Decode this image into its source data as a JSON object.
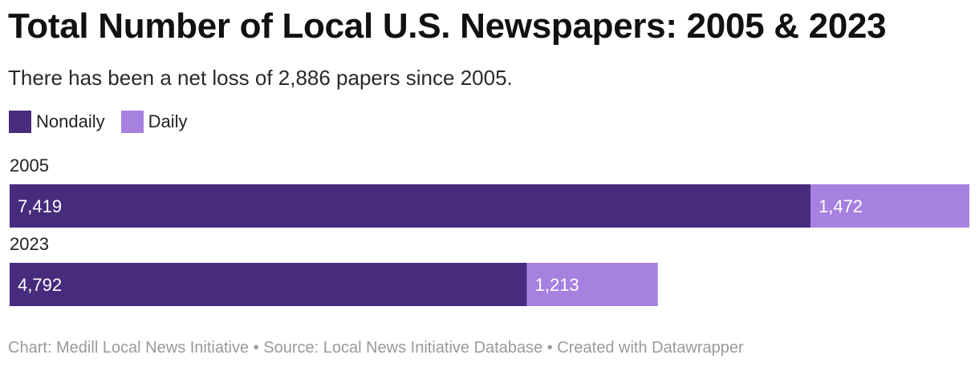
{
  "chart_data": {
    "type": "bar",
    "orientation": "horizontal",
    "stacked": true,
    "title": "Total Number of Local U.S. Newspapers: 2005 & 2023",
    "subtitle": "There has been a net loss of 2,886 papers since 2005.",
    "categories": [
      "2005",
      "2023"
    ],
    "series": [
      {
        "name": "Nondaily",
        "color": "#472c7d",
        "values": [
          7419,
          4792
        ],
        "labels": [
          "7,419",
          "4,792"
        ]
      },
      {
        "name": "Daily",
        "color": "#a681e0",
        "values": [
          1472,
          1213
        ],
        "labels": [
          "1,472",
          "1,213"
        ]
      }
    ],
    "xlim": [
      0,
      8891
    ],
    "grid": false,
    "legend": "top-left",
    "footer": "Chart: Medill Local News Initiative • Source: Local News Initiative Database • Created with Datawrapper"
  }
}
